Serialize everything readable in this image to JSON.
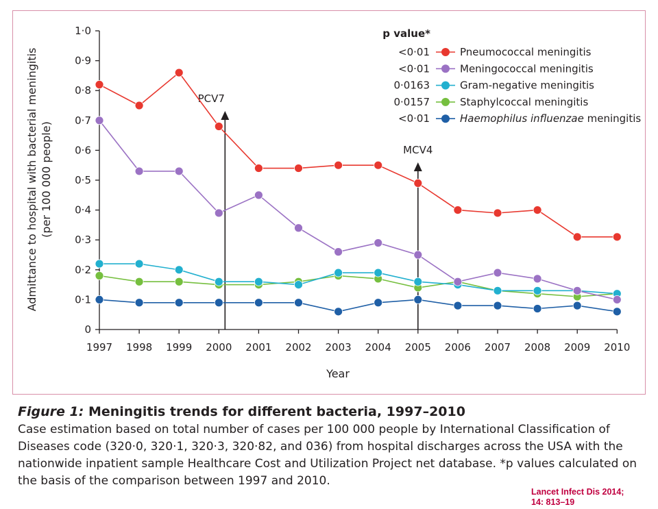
{
  "chart_data": {
    "type": "line",
    "title": "",
    "xlabel": "Year",
    "ylabel_line1": "Admittance to hospital with bacterial meningitis",
    "ylabel_line2": "(per 100 000 people)",
    "ylim": [
      0,
      1.0
    ],
    "yticks": [
      "0",
      "0·1",
      "0·2",
      "0·3",
      "0·4",
      "0·5",
      "0·6",
      "0·7",
      "0·8",
      "0·9",
      "1·0"
    ],
    "x": [
      "1997",
      "1998",
      "1999",
      "2000",
      "2001",
      "2002",
      "2003",
      "2004",
      "2005",
      "2006",
      "2007",
      "2008",
      "2009",
      "2010"
    ],
    "grid": false,
    "legend_position": "top-right",
    "legend_header": "p value*",
    "series": [
      {
        "name": "Pneumococcal meningitis",
        "pvalue": "<0·01",
        "color": "#e8382f",
        "values": [
          0.82,
          0.75,
          0.86,
          0.68,
          0.54,
          0.54,
          0.55,
          0.55,
          0.49,
          0.4,
          0.39,
          0.4,
          0.31,
          0.31
        ]
      },
      {
        "name": "Meningococcal meningitis",
        "pvalue": "<0·01",
        "color": "#9b72c4",
        "values": [
          0.7,
          0.53,
          0.53,
          0.39,
          0.45,
          0.34,
          0.26,
          0.29,
          0.25,
          0.16,
          0.19,
          0.17,
          0.13,
          0.1
        ]
      },
      {
        "name": "Gram-negative meningitis",
        "pvalue": "0·0163",
        "color": "#22b0cf",
        "values": [
          0.22,
          0.22,
          0.2,
          0.16,
          0.16,
          0.15,
          0.19,
          0.19,
          0.16,
          0.15,
          0.13,
          0.13,
          0.13,
          0.12
        ]
      },
      {
        "name": "Staphylcoccal meningitis",
        "pvalue": "0·0157",
        "color": "#76bf3f",
        "values": [
          0.18,
          0.16,
          0.16,
          0.15,
          0.15,
          0.16,
          0.18,
          0.17,
          0.14,
          0.16,
          0.13,
          0.12,
          0.11,
          0.12
        ]
      },
      {
        "name": "meningitis",
        "name_italic": "Haemophilus influenzae",
        "pvalue": "<0·01",
        "color": "#1f5fa6",
        "values": [
          0.1,
          0.09,
          0.09,
          0.09,
          0.09,
          0.09,
          0.06,
          0.09,
          0.1,
          0.08,
          0.08,
          0.07,
          0.08,
          0.06
        ]
      }
    ],
    "annotations": [
      {
        "label": "PCV7",
        "x": "2000"
      },
      {
        "label": "MCV4",
        "x": "2005"
      }
    ]
  },
  "caption": {
    "figure_label": "Figure 1:",
    "title": "Meningitis trends for different bacteria, 1997–2010",
    "body": "Case estimation based on total number of cases per 100 000 people by International Classification of Diseases code (320·0, 320·1, 320·3, 320·82, and 036) from hospital discharges across the USA with the nationwide inpatient sample Healthcare Cost and Utilization Project net database. *p values calculated on the basis of the comparison between 1997 and 2010."
  },
  "citation": {
    "line1": "Lancet Infect Dis 2014;",
    "line2": "14: 813–19"
  }
}
